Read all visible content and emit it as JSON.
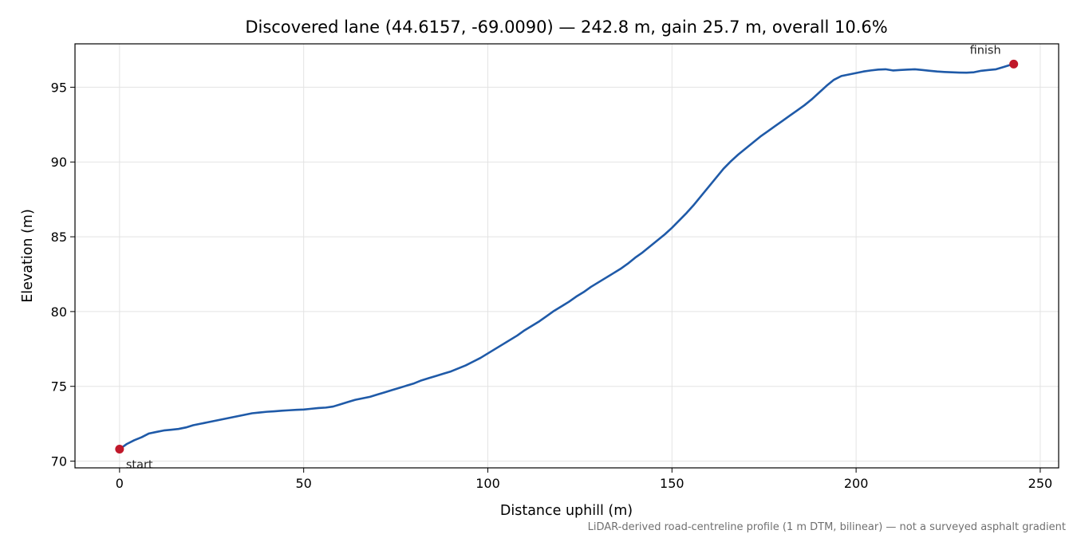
{
  "chart_data": {
    "type": "line",
    "title": "Discovered lane (44.6157, -69.0090) — 242.8 m, gain 25.7 m, overall 10.6%",
    "xlabel": "Distance uphill (m)",
    "ylabel": "Elevation (m)",
    "xlim": [
      -12.1,
      255.0
    ],
    "ylim": [
      69.55,
      97.9
    ],
    "xticks": [
      0,
      50,
      100,
      150,
      200,
      250
    ],
    "yticks": [
      70,
      75,
      80,
      85,
      90,
      95
    ],
    "grid": true,
    "series": [
      {
        "color": "#1f5aa8",
        "x": [
          0,
          2,
          4,
          6,
          8,
          10,
          12,
          14,
          16,
          18,
          20,
          22,
          24,
          26,
          28,
          30,
          32,
          34,
          36,
          38,
          40,
          42,
          44,
          46,
          48,
          50,
          52,
          54,
          56,
          58,
          60,
          62,
          64,
          66,
          68,
          70,
          72,
          74,
          76,
          78,
          80,
          82,
          84,
          86,
          88,
          90,
          92,
          94,
          96,
          98,
          100,
          102,
          104,
          106,
          108,
          110,
          112,
          114,
          116,
          118,
          120,
          122,
          124,
          126,
          128,
          130,
          132,
          134,
          136,
          138,
          140,
          142,
          144,
          146,
          148,
          150,
          152,
          154,
          156,
          158,
          160,
          162,
          164,
          166,
          168,
          170,
          172,
          174,
          176,
          178,
          180,
          182,
          184,
          186,
          188,
          190,
          192,
          194,
          196,
          198,
          200,
          202,
          204,
          206,
          208,
          210,
          212,
          214,
          216,
          218,
          220,
          222,
          224,
          226,
          228,
          230,
          232,
          234,
          236,
          238,
          240,
          242,
          242.8
        ],
        "y": [
          70.8,
          71.15,
          71.4,
          71.6,
          71.85,
          71.95,
          72.05,
          72.1,
          72.15,
          72.25,
          72.4,
          72.5,
          72.6,
          72.7,
          72.8,
          72.9,
          73.0,
          73.1,
          73.2,
          73.25,
          73.3,
          73.33,
          73.37,
          73.4,
          73.43,
          73.45,
          73.5,
          73.55,
          73.58,
          73.65,
          73.8,
          73.95,
          74.1,
          74.2,
          74.3,
          74.45,
          74.6,
          74.75,
          74.9,
          75.05,
          75.2,
          75.4,
          75.55,
          75.7,
          75.85,
          76.0,
          76.2,
          76.4,
          76.65,
          76.9,
          77.2,
          77.5,
          77.8,
          78.1,
          78.4,
          78.75,
          79.05,
          79.35,
          79.7,
          80.05,
          80.35,
          80.65,
          81.0,
          81.3,
          81.65,
          81.95,
          82.25,
          82.55,
          82.85,
          83.2,
          83.6,
          83.95,
          84.35,
          84.75,
          85.15,
          85.6,
          86.1,
          86.6,
          87.15,
          87.75,
          88.35,
          88.95,
          89.55,
          90.05,
          90.5,
          90.9,
          91.3,
          91.7,
          92.05,
          92.4,
          92.75,
          93.1,
          93.45,
          93.8,
          94.2,
          94.65,
          95.1,
          95.5,
          95.75,
          95.85,
          95.95,
          96.05,
          96.12,
          96.18,
          96.2,
          96.12,
          96.15,
          96.18,
          96.2,
          96.15,
          96.1,
          96.05,
          96.02,
          96.0,
          95.98,
          95.97,
          96.0,
          96.1,
          96.15,
          96.2,
          96.35,
          96.5,
          96.55
        ]
      }
    ],
    "points": [
      {
        "label": "start",
        "x": 0,
        "y": 70.8,
        "color": "#c0182a"
      },
      {
        "label": "finish",
        "x": 242.8,
        "y": 96.55,
        "color": "#c0182a"
      }
    ],
    "footnote": "LiDAR-derived road-centreline profile (1 m DTM, bilinear) — not a surveyed asphalt gradient"
  }
}
